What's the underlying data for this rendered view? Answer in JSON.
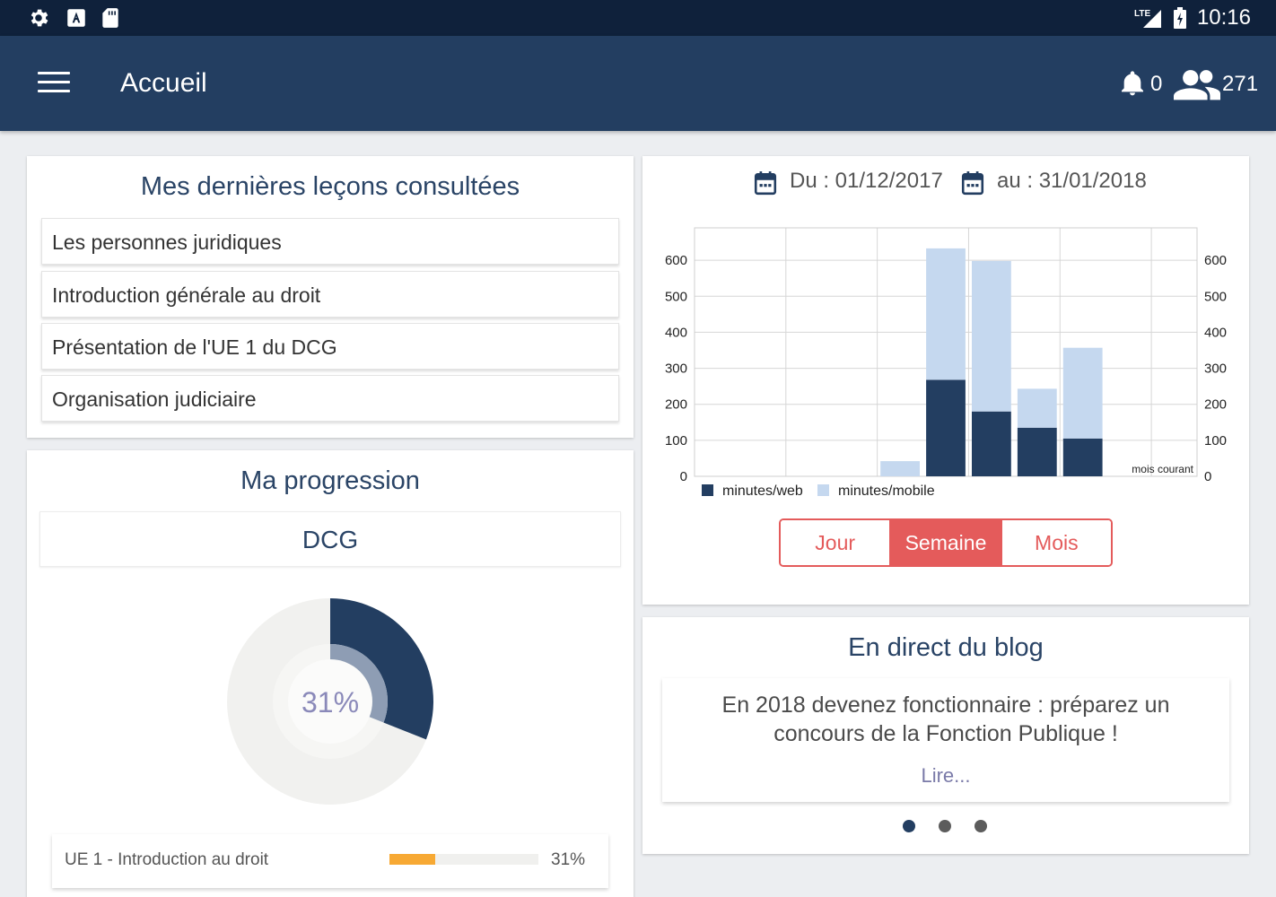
{
  "status_bar": {
    "icons": [
      "gear-icon",
      "keyboard-a-icon",
      "sd-card-icon",
      "lte-signal-icon",
      "battery-charging-icon"
    ],
    "time": "10:16",
    "network_label": "LTE"
  },
  "app_bar": {
    "title": "Accueil",
    "notifications_count": "0",
    "users_count": "271",
    "colors": {
      "background": "#233e61",
      "status_bar": "#0f213b"
    }
  },
  "recent_lessons": {
    "title": "Mes dernières leçons consultées",
    "items": [
      {
        "label": "Les personnes juridiques"
      },
      {
        "label": "Introduction générale au droit"
      },
      {
        "label": "Présentation de l'UE 1 du DCG"
      },
      {
        "label": "Organisation judiciaire"
      }
    ]
  },
  "progression": {
    "title": "Ma progression",
    "program": "DCG",
    "overall_percent_label": "31%",
    "overall_fraction": 0.31,
    "units": [
      {
        "label": "UE 1 - Introduction au droit",
        "percent_label": "31%",
        "fraction": 0.31
      }
    ],
    "colors": {
      "done": "#233e61",
      "remaining": "#f1f1ef",
      "bar": "#f7a934"
    }
  },
  "stats": {
    "date_from": "Du : 01/12/2017",
    "date_to": "au : 31/01/2018",
    "current_month_label": "mois courant",
    "tabs": [
      {
        "label": "Jour",
        "active": false
      },
      {
        "label": "Semaine",
        "active": true
      },
      {
        "label": "Mois",
        "active": false
      }
    ],
    "accent": "#e45b5b"
  },
  "chart_data": {
    "type": "bar",
    "stacked": true,
    "categories": [
      "",
      "",
      "",
      "",
      "",
      "",
      "",
      "",
      "",
      "",
      ""
    ],
    "series": [
      {
        "name": "minutes/web",
        "color": "#233e61",
        "values": [
          0,
          0,
          0,
          0,
          0,
          268,
          180,
          135,
          105,
          0,
          0
        ]
      },
      {
        "name": "minutes/mobile",
        "color": "#c5d8ef",
        "values": [
          0,
          0,
          0,
          0,
          42,
          365,
          418,
          108,
          252,
          0,
          0
        ]
      }
    ],
    "ylim": [
      0,
      690
    ],
    "yticks": [
      0,
      100,
      200,
      300,
      400,
      500,
      600
    ],
    "grid": true,
    "legend": "bottom-left",
    "annotations": [
      "mois courant"
    ]
  },
  "blog": {
    "title": "En direct du blog",
    "headline": "En 2018 devenez fonctionnaire : préparez un concours de la Fonction Publique !",
    "read_more": "Lire...",
    "pager_count": 3,
    "active_page": 0
  }
}
